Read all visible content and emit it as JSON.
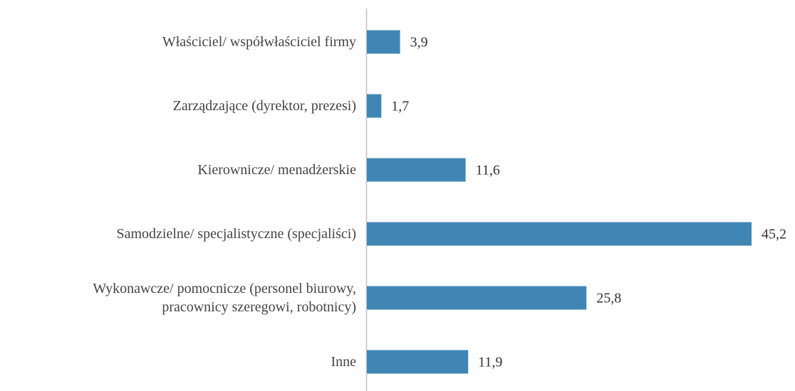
{
  "chart_data": {
    "type": "bar",
    "orientation": "horizontal",
    "categories": [
      "Właściciel/ współwłaściciel firmy",
      "Zarządzające (dyrektor, prezesi)",
      "Kierownicze/ menadżerskie",
      "Samodzielne/ specjalistyczne (specjaliści)",
      "Wykonawcze/ pomocnicze (personel biurowy,\npracownicy szeregowi, robotnicy)",
      "Inne"
    ],
    "values": [
      3.9,
      1.7,
      11.6,
      45.2,
      25.8,
      11.9
    ],
    "value_labels": [
      "3,9",
      "1,7",
      "11,6",
      "45,2",
      "25,8",
      "11,9"
    ],
    "color": "#3f86b4"
  }
}
